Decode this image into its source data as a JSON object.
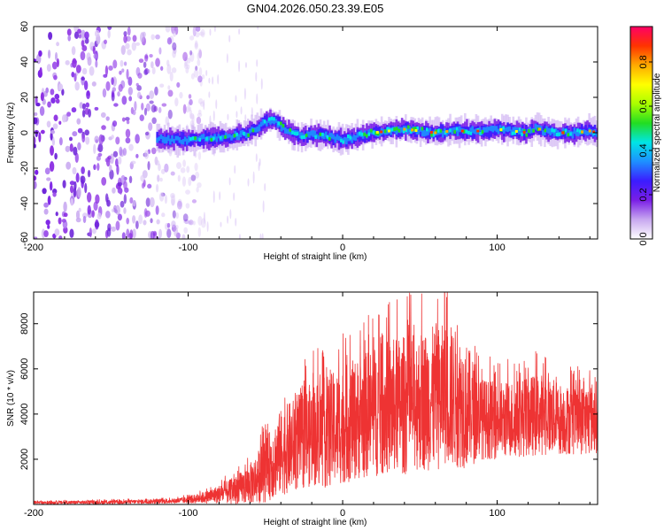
{
  "page": {
    "title": "GN04.2026.050.23.39.E05"
  },
  "chart_data": [
    {
      "type": "heatmap",
      "xlabel": "Height of straight line (km)",
      "ylabel": "Frequency (Hz)",
      "xlim": [
        -200,
        165
      ],
      "ylim": [
        -60,
        60
      ],
      "x_ticks": [
        "-200",
        "-100",
        "0",
        "100"
      ],
      "y_ticks": [
        "-60",
        "-40",
        "-20",
        "0",
        "20",
        "40",
        "60"
      ],
      "colorbar": {
        "label": "Normalized spectral amplitude",
        "range": [
          0,
          0.96
        ],
        "ticks": [
          "0.0",
          "0.2",
          "0.4",
          "0.6",
          "0.8"
        ],
        "colors": [
          "#ffffff",
          "#c8a8f0",
          "#7a1fe6",
          "#3b1cff",
          "#1e90ff",
          "#00e5e5",
          "#22dd22",
          "#aaff00",
          "#ffff00",
          "#ffaa00",
          "#ff3300",
          "#ff0066"
        ]
      },
      "noise_region_km": [
        -200,
        -90
      ],
      "signal_track": {
        "x": [
          -120,
          -110,
          -100,
          -90,
          -80,
          -70,
          -60,
          -50,
          -45,
          -40,
          -35,
          -30,
          -25,
          -20,
          -10,
          0,
          10,
          20,
          30,
          40,
          50,
          60,
          70,
          80,
          90,
          100,
          110,
          120,
          125,
          130,
          140,
          150,
          160,
          165
        ],
        "y": [
          -3,
          -4,
          -4,
          -3,
          -3,
          -2,
          0,
          6,
          7,
          4,
          1,
          -1,
          -2,
          -1,
          -2,
          -4,
          -2,
          0,
          1,
          2,
          1,
          0,
          1,
          1,
          1,
          2,
          1,
          0,
          3,
          1,
          0,
          0,
          1,
          0
        ]
      }
    },
    {
      "type": "line",
      "xlabel": "Height of straight line (km)",
      "ylabel": "SNR (10 * v/v)",
      "xlim": [
        -200,
        165
      ],
      "ylim": [
        0,
        9400
      ],
      "x_ticks": [
        "-200",
        "-100",
        "0",
        "100"
      ],
      "y_ticks": [
        "2000",
        "4000",
        "6000",
        "8000"
      ],
      "color": "#ee3333",
      "envelope": {
        "x": [
          -200,
          -150,
          -110,
          -100,
          -90,
          -80,
          -70,
          -60,
          -50,
          -40,
          -30,
          -20,
          -10,
          0,
          10,
          20,
          30,
          40,
          50,
          60,
          70,
          80,
          90,
          100,
          110,
          120,
          130,
          140,
          150,
          160,
          165
        ],
        "mean": [
          80,
          100,
          150,
          200,
          300,
          450,
          600,
          900,
          1500,
          2300,
          2700,
          3100,
          3200,
          3500,
          3800,
          4100,
          4300,
          4400,
          4600,
          4700,
          4800,
          4400,
          3800,
          3700,
          3800,
          3900,
          4000,
          3800,
          3700,
          3800,
          3900
        ],
        "amplitude": [
          60,
          80,
          100,
          150,
          250,
          400,
          600,
          900,
          1400,
          1900,
          2100,
          2300,
          2500,
          2600,
          2700,
          2900,
          3000,
          3100,
          3100,
          3200,
          3200,
          2800,
          1800,
          1700,
          1700,
          1800,
          1800,
          1600,
          1500,
          1600,
          1600
        ]
      },
      "peak": {
        "x": 66,
        "y": 9400
      }
    }
  ]
}
